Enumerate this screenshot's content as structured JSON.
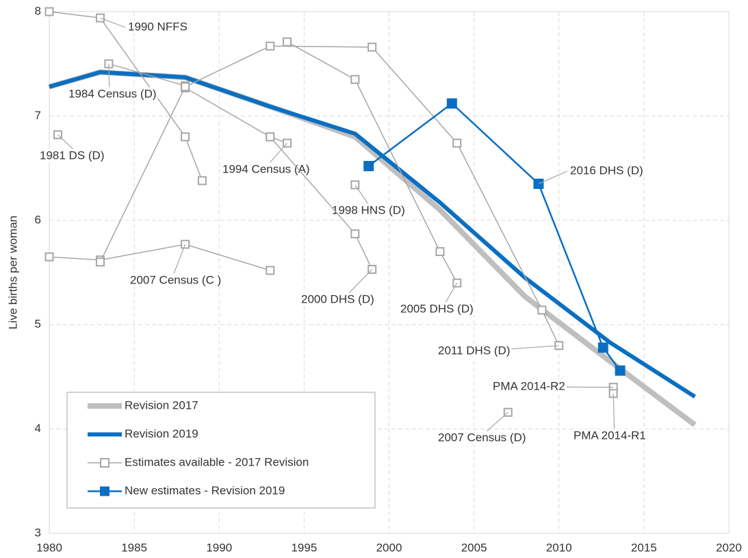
{
  "chart_data": {
    "type": "line",
    "y_label": "Live births per woman",
    "xlim": [
      1980,
      2020
    ],
    "xticks": [
      1980,
      1985,
      1990,
      1995,
      2000,
      2005,
      2010,
      2015,
      2020
    ],
    "ylim": [
      3,
      8
    ],
    "yticks": [
      3,
      4,
      5,
      6,
      7,
      8
    ],
    "grid": true,
    "legend": "bottom-left",
    "series": [
      {
        "name": "Revision 2017",
        "color": "#bfbfbf",
        "x": [
          1980,
          1983,
          1988,
          1993,
          1998,
          2003,
          2008,
          2013,
          2018
        ],
        "values": [
          7.28,
          7.42,
          7.37,
          7.09,
          6.8,
          6.1,
          5.27,
          4.65,
          4.04
        ]
      },
      {
        "name": "Revision 2019",
        "color": "#0a6fc2",
        "x": [
          1980,
          1983,
          1988,
          1993,
          1998,
          2003,
          2008,
          2013,
          2018
        ],
        "values": [
          7.28,
          7.42,
          7.37,
          7.09,
          6.83,
          6.17,
          5.45,
          4.83,
          4.31
        ]
      },
      {
        "name": "Estimates available - 2017 Revision",
        "color": "#a6a6a6",
        "sources": [
          {
            "label": "1990 NFFS",
            "x": [
              1980,
              1983,
              1988,
              1989
            ],
            "values": [
              8.0,
              7.94,
              6.8,
              6.38
            ]
          },
          {
            "label": "1984 Census (D)",
            "x": [
              1983.5,
              1988
            ],
            "values": [
              7.5,
              7.29
            ]
          },
          {
            "label": "1981 DS (D)",
            "x": [
              1980.5
            ],
            "values": [
              6.82
            ]
          },
          {
            "label": "2007 Census (C )",
            "x": [
              1980,
              1983,
              1988,
              1993
            ],
            "values": [
              5.65,
              5.62,
              5.77,
              5.52
            ]
          },
          {
            "label": "1994 Census (A)",
            "x": [
              1988,
              1993,
              1994
            ],
            "values": [
              7.27,
              6.8,
              6.74
            ]
          },
          {
            "label": "1998 HNS (D)",
            "x": [
              1998
            ],
            "values": [
              6.34
            ]
          },
          {
            "label": "2000 DHS (D)",
            "x": [
              1993,
              1998,
              1999
            ],
            "values": [
              6.8,
              5.87,
              5.53
            ]
          },
          {
            "label": "2005 DHS (D)",
            "x": [
              1994,
              1998,
              2003,
              2004
            ],
            "values": [
              7.71,
              7.35,
              5.7,
              5.4
            ]
          },
          {
            "label": "2011 DHS (D)",
            "x": [
              1983,
              1988,
              1993,
              1999,
              2004,
              2009,
              2010
            ],
            "values": [
              5.6,
              7.28,
              7.67,
              7.66,
              6.74,
              5.14,
              4.8
            ]
          },
          {
            "label": "PMA 2014-R2",
            "x": [
              2013.2
            ],
            "values": [
              4.4
            ]
          },
          {
            "label": "PMA 2014-R1",
            "x": [
              2013.2
            ],
            "values": [
              4.34
            ]
          },
          {
            "label": "2007 Census (D)",
            "x": [
              2007
            ],
            "values": [
              4.16
            ]
          }
        ]
      },
      {
        "name": "New estimates - Revision 2019",
        "color": "#0a6fc2",
        "sources": [
          {
            "label": "2016 DHS (D)",
            "x": [
              1998.8,
              2003.7,
              2008.8,
              2012.6,
              2013.6
            ],
            "values": [
              6.52,
              7.12,
              6.35,
              4.78,
              4.56
            ]
          }
        ]
      }
    ]
  }
}
